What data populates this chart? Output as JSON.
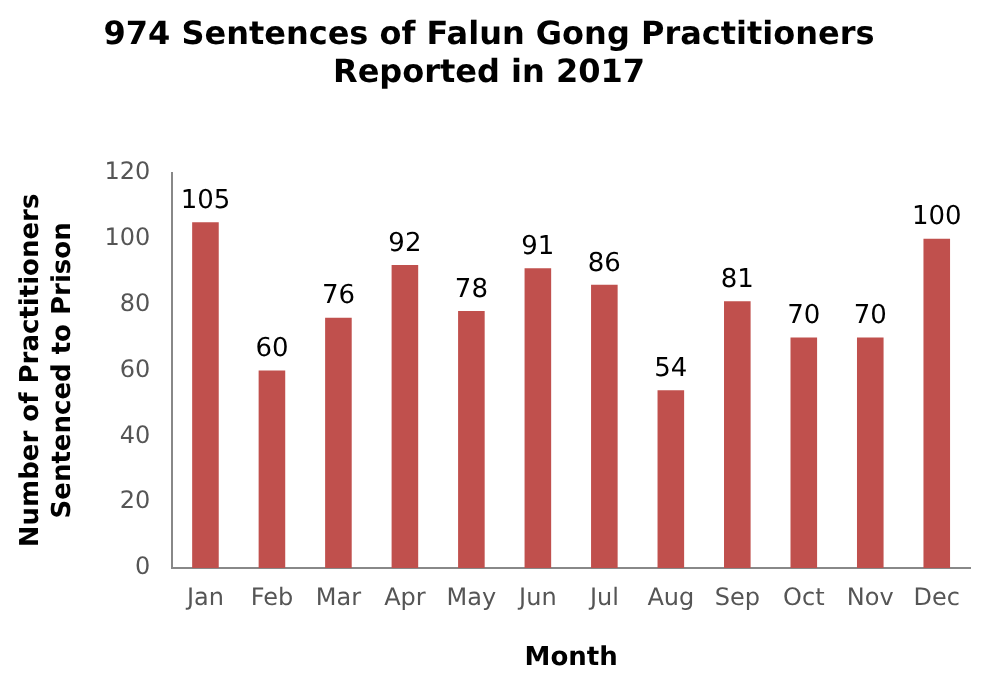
{
  "chart_data": {
    "type": "bar",
    "title": "974 Sentences of Falun Gong Practitioners\nReported in 2017",
    "xlabel": "Month",
    "ylabel": "Number of Practitioners\nSentenced to Prison",
    "categories": [
      "Jan",
      "Feb",
      "Mar",
      "Apr",
      "May",
      "Jun",
      "Jul",
      "Aug",
      "Sep",
      "Oct",
      "Nov",
      "Dec"
    ],
    "values": [
      105,
      60,
      76,
      92,
      78,
      91,
      86,
      54,
      81,
      70,
      70,
      100
    ],
    "color": "#c0504d",
    "ylim": [
      0,
      120
    ],
    "yticks": [
      0,
      20,
      40,
      60,
      80,
      100,
      120
    ],
    "grid": false,
    "legend": false,
    "data_labels": true
  }
}
